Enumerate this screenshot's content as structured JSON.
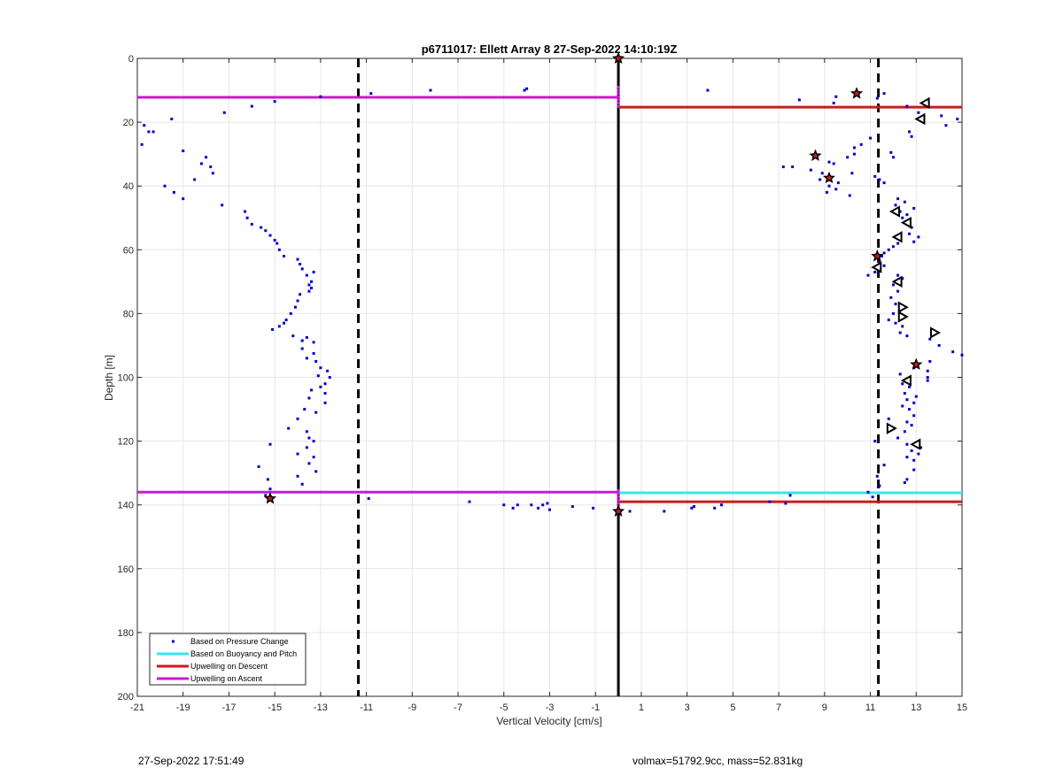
{
  "chart_data": {
    "type": "scatter",
    "title": "p6711017: Ellett Array 8 27-Sep-2022 14:10:19Z",
    "xlabel": "Vertical Velocity [cm/s]",
    "ylabel": "Depth [m]",
    "xlim": [
      -21,
      15
    ],
    "ylim": [
      0,
      200
    ],
    "y_reversed": true,
    "grid": true,
    "xticks": [
      -21,
      -19,
      -17,
      -15,
      -13,
      -11,
      -9,
      -7,
      -5,
      -3,
      -1,
      1,
      3,
      5,
      7,
      9,
      11,
      13,
      15
    ],
    "xtick_labels": [
      "-21",
      "-19",
      "-17",
      "-15",
      "-13",
      "-11",
      "-9",
      "-7",
      "-5",
      "-3",
      "-1",
      "1",
      "3",
      "5",
      "7",
      "9",
      "11",
      "13",
      "15"
    ],
    "yticks": [
      0,
      20,
      40,
      60,
      80,
      100,
      120,
      140,
      160,
      180,
      200
    ],
    "ytick_labels": [
      "0",
      "20",
      "40",
      "60",
      "80",
      "100",
      "120",
      "140",
      "160",
      "180",
      "200"
    ],
    "legend_position": "bottom-left",
    "legend": [
      {
        "label": "Based on Pressure Change",
        "color": "#0000cc",
        "kind": "marker"
      },
      {
        "label": "Based on Buoyancy and Pitch",
        "color": "#33e6f0",
        "kind": "line"
      },
      {
        "label": "Upwelling on Descent",
        "color": "#cc1a1a",
        "kind": "line"
      },
      {
        "label": "Upwelling on Ascent",
        "color": "#cc1acc",
        "kind": "line"
      }
    ],
    "vlines": [
      {
        "x": -11.35,
        "style": "dashed",
        "color": "#000000"
      },
      {
        "x": 11.35,
        "style": "dashed",
        "color": "#000000"
      },
      {
        "x": 0,
        "style": "solid",
        "color": "#000000"
      }
    ],
    "hsegments": [
      {
        "name": "Upwelling on Ascent",
        "y": 12.2,
        "x0": -21,
        "x1": 0,
        "color": "#cc1acc"
      },
      {
        "name": "Upwelling on Descent",
        "y": 15.3,
        "x0": 0,
        "x1": 15,
        "color": "#cc1a1a"
      },
      {
        "name": "Upwelling on Ascent",
        "y": 136,
        "x0": -21,
        "x1": 0,
        "color": "#cc1acc"
      },
      {
        "name": "Based on Buoyancy and Pitch",
        "y": 136.2,
        "x0": 0,
        "x1": 15,
        "color": "#33e6f0"
      },
      {
        "name": "Upwelling on Descent",
        "y": 139,
        "x0": 0,
        "x1": 15,
        "color": "#cc1a1a"
      }
    ],
    "series": [
      {
        "name": "Based on Pressure Change",
        "color": "#0000cc",
        "marker": "dot",
        "points": [
          [
            -20.8,
            27
          ],
          [
            -20.5,
            23
          ],
          [
            -20.7,
            21
          ],
          [
            -20.3,
            23
          ],
          [
            -19.5,
            19
          ],
          [
            -19.0,
            29
          ],
          [
            -18.5,
            38
          ],
          [
            -18.2,
            33
          ],
          [
            -18.0,
            31
          ],
          [
            -17.7,
            36
          ],
          [
            -17.8,
            34
          ],
          [
            -19.8,
            40
          ],
          [
            -19.4,
            42
          ],
          [
            -19.0,
            44
          ],
          [
            -17.3,
            46
          ],
          [
            -17.2,
            17
          ],
          [
            -16.3,
            48
          ],
          [
            -16.2,
            50
          ],
          [
            -16.0,
            52
          ],
          [
            -15.6,
            53
          ],
          [
            -15.4,
            54
          ],
          [
            -15.2,
            55.5
          ],
          [
            -15.0,
            57
          ],
          [
            -14.9,
            58
          ],
          [
            -14.8,
            60
          ],
          [
            -14.6,
            62
          ],
          [
            -14.0,
            63
          ],
          [
            -13.9,
            64.5
          ],
          [
            -13.8,
            66
          ],
          [
            -13.6,
            68
          ],
          [
            -13.3,
            67
          ],
          [
            -13.4,
            70
          ],
          [
            -13.5,
            71
          ],
          [
            -13.4,
            72
          ],
          [
            -13.5,
            73
          ],
          [
            -13.9,
            74
          ],
          [
            -14.0,
            76
          ],
          [
            -14.1,
            78
          ],
          [
            -14.3,
            80
          ],
          [
            -14.5,
            82
          ],
          [
            -14.6,
            83
          ],
          [
            -14.8,
            84
          ],
          [
            -15.1,
            85
          ],
          [
            -14.2,
            87
          ],
          [
            -13.6,
            87.5
          ],
          [
            -13.8,
            88.5
          ],
          [
            -13.3,
            89
          ],
          [
            -13.8,
            91
          ],
          [
            -13.3,
            92.5
          ],
          [
            -13.6,
            94
          ],
          [
            -13.2,
            95
          ],
          [
            -13.0,
            97
          ],
          [
            -12.7,
            98
          ],
          [
            -13.1,
            99.5
          ],
          [
            -12.6,
            100
          ],
          [
            -12.8,
            102
          ],
          [
            -13.0,
            103
          ],
          [
            -13.4,
            104
          ],
          [
            -12.8,
            105
          ],
          [
            -13.5,
            106.5
          ],
          [
            -12.8,
            108
          ],
          [
            -13.7,
            110
          ],
          [
            -13.2,
            111
          ],
          [
            -14.0,
            113
          ],
          [
            -14.4,
            116
          ],
          [
            -13.6,
            117
          ],
          [
            -13.5,
            119
          ],
          [
            -13.3,
            120
          ],
          [
            -15.2,
            121
          ],
          [
            -13.6,
            122
          ],
          [
            -14.0,
            124
          ],
          [
            -13.3,
            125
          ],
          [
            -13.5,
            127
          ],
          [
            -15.7,
            128
          ],
          [
            -13.2,
            129.5
          ],
          [
            -14.0,
            131
          ],
          [
            -15.3,
            132
          ],
          [
            -13.8,
            133.5
          ],
          [
            -15.2,
            135
          ],
          [
            -15.4,
            137
          ],
          [
            -16.0,
            15
          ],
          [
            -15.0,
            13.5
          ],
          [
            -13.0,
            12
          ],
          [
            -10.8,
            11
          ],
          [
            -8.2,
            10
          ],
          [
            -4.0,
            9.5
          ],
          [
            -4.1,
            10
          ],
          [
            -10.9,
            138
          ],
          [
            -6.5,
            139
          ],
          [
            -5.0,
            140
          ],
          [
            -4.4,
            140
          ],
          [
            -4.6,
            141
          ],
          [
            -3.8,
            140
          ],
          [
            -3.5,
            141
          ],
          [
            -3.1,
            139.5
          ],
          [
            -3.0,
            141.5
          ],
          [
            -3.3,
            140
          ],
          [
            -2.0,
            140.5
          ],
          [
            -1.1,
            141
          ],
          [
            0.5,
            142
          ],
          [
            2.0,
            142
          ],
          [
            3.2,
            141
          ],
          [
            3.3,
            140.5
          ],
          [
            4.2,
            141
          ],
          [
            4.5,
            140
          ],
          [
            6.6,
            139
          ],
          [
            7.3,
            139.5
          ],
          [
            7.5,
            137
          ],
          [
            3.9,
            10
          ],
          [
            7.9,
            13
          ],
          [
            9.4,
            14
          ],
          [
            9.5,
            12
          ],
          [
            11.6,
            11
          ],
          [
            12.6,
            15
          ],
          [
            11.3,
            12.5
          ],
          [
            13.1,
            17
          ],
          [
            13.3,
            19
          ],
          [
            14.1,
            18
          ],
          [
            14.3,
            21
          ],
          [
            14.8,
            19
          ],
          [
            12.7,
            23
          ],
          [
            12.8,
            24.5
          ],
          [
            11.0,
            25
          ],
          [
            10.6,
            27
          ],
          [
            10.3,
            28
          ],
          [
            11.9,
            29.5
          ],
          [
            12.0,
            31
          ],
          [
            10.3,
            30
          ],
          [
            10.0,
            31
          ],
          [
            9.2,
            32.5
          ],
          [
            9.4,
            33
          ],
          [
            7.2,
            34
          ],
          [
            7.6,
            34
          ],
          [
            8.4,
            35
          ],
          [
            8.9,
            36
          ],
          [
            10.2,
            36
          ],
          [
            11.2,
            37
          ],
          [
            8.8,
            38
          ],
          [
            9.6,
            39
          ],
          [
            9.2,
            40
          ],
          [
            9.5,
            41
          ],
          [
            9.1,
            42
          ],
          [
            10.1,
            43
          ],
          [
            11.6,
            39
          ],
          [
            11.4,
            38
          ],
          [
            12.2,
            44
          ],
          [
            12.5,
            45
          ],
          [
            12.1,
            46
          ],
          [
            12.9,
            47
          ],
          [
            12.3,
            48
          ],
          [
            12.6,
            49
          ],
          [
            12.4,
            50
          ],
          [
            12.8,
            53
          ],
          [
            12.7,
            55
          ],
          [
            13.1,
            56
          ],
          [
            12.9,
            57.5
          ],
          [
            12.2,
            58
          ],
          [
            12.0,
            59
          ],
          [
            11.8,
            60
          ],
          [
            11.6,
            61
          ],
          [
            11.5,
            62
          ],
          [
            11.4,
            64
          ],
          [
            11.6,
            65
          ],
          [
            11.2,
            67
          ],
          [
            10.9,
            68
          ],
          [
            12.2,
            68
          ],
          [
            12.4,
            69
          ],
          [
            12.0,
            71
          ],
          [
            12.2,
            73
          ],
          [
            11.9,
            75
          ],
          [
            12.1,
            77
          ],
          [
            12.3,
            79
          ],
          [
            12.0,
            80
          ],
          [
            11.8,
            82
          ],
          [
            12.1,
            83
          ],
          [
            12.4,
            84
          ],
          [
            12.3,
            86
          ],
          [
            12.6,
            87
          ],
          [
            13.6,
            88
          ],
          [
            14.0,
            90
          ],
          [
            14.6,
            92
          ],
          [
            15.0,
            93
          ],
          [
            13.6,
            95
          ],
          [
            13.5,
            98
          ],
          [
            12.9,
            97
          ],
          [
            12.3,
            99
          ],
          [
            12.4,
            102
          ],
          [
            12.7,
            103
          ],
          [
            12.5,
            105
          ],
          [
            13.0,
            106
          ],
          [
            12.6,
            107
          ],
          [
            12.9,
            108
          ],
          [
            12.4,
            109
          ],
          [
            12.7,
            110
          ],
          [
            12.9,
            112
          ],
          [
            11.8,
            113
          ],
          [
            12.6,
            114
          ],
          [
            12.8,
            115
          ],
          [
            12.5,
            117
          ],
          [
            12.2,
            119
          ],
          [
            11.2,
            120
          ],
          [
            12.6,
            121
          ],
          [
            13.2,
            122
          ],
          [
            12.8,
            123
          ],
          [
            13.1,
            124
          ],
          [
            12.6,
            125
          ],
          [
            12.9,
            126
          ],
          [
            11.6,
            127.5
          ],
          [
            12.9,
            129
          ],
          [
            12.6,
            132
          ],
          [
            12.5,
            133
          ],
          [
            11.3,
            131
          ],
          [
            11.4,
            134
          ],
          [
            10.9,
            136
          ],
          [
            11.1,
            137.5
          ],
          [
            13.5,
            100
          ],
          [
            13.5,
            101
          ]
        ]
      },
      {
        "name": "Based on Buoyancy and Pitch",
        "color": "#cc1acc",
        "marker": "dot",
        "points": [
          [
            0,
            9
          ],
          [
            0,
            10
          ],
          [
            0,
            11
          ],
          [
            0,
            12
          ],
          [
            0,
            13
          ],
          [
            0,
            14
          ],
          [
            0,
            15
          ],
          [
            0,
            135.5
          ],
          [
            0,
            136.5
          ],
          [
            0,
            137.5
          ],
          [
            0,
            138.5
          ],
          [
            0,
            139.5
          ],
          [
            0,
            140.5
          ],
          [
            0,
            141.5
          ]
        ]
      },
      {
        "name": "Upwelling on Descent",
        "color": "#cc1a1a",
        "marker": "pentagram",
        "points": [
          [
            0,
            0
          ],
          [
            10.4,
            11
          ],
          [
            8.6,
            30.5
          ],
          [
            9.2,
            37.5
          ],
          [
            11.3,
            62
          ],
          [
            13.0,
            96
          ],
          [
            -15.2,
            138
          ],
          [
            0,
            142
          ]
        ]
      },
      {
        "name": "Upwelling on Ascent",
        "color": "#ffffff",
        "marker": "triangle-left",
        "points": [
          [
            13.4,
            14
          ],
          [
            13.2,
            19
          ],
          [
            12.1,
            48
          ],
          [
            12.6,
            51.5
          ],
          [
            12.2,
            56
          ],
          [
            11.3,
            65.5
          ],
          [
            12.2,
            70
          ],
          [
            12.6,
            101
          ],
          [
            13.0,
            121
          ]
        ]
      },
      {
        "name": "Upwelling on Ascent",
        "color": "#ffffff",
        "marker": "triangle-right",
        "points": [
          [
            12.4,
            78
          ],
          [
            12.4,
            81
          ],
          [
            13.8,
            86
          ],
          [
            11.9,
            116
          ]
        ]
      }
    ]
  },
  "footer": {
    "timestamp": "27-Sep-2022 17:51:49",
    "info": "volmax=51792.9cc, mass=52.831kg"
  }
}
